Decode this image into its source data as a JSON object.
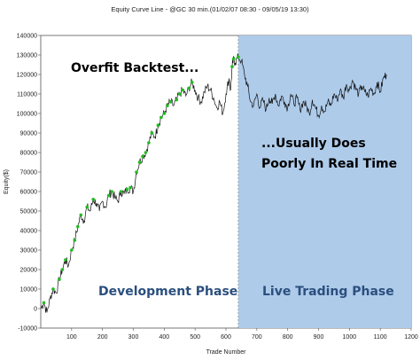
{
  "chart_data": {
    "type": "line",
    "title": "Equity Curve Line - @GC 30 min.(01/02/07 08:30 - 09/05/19 13:30)",
    "xlabel": "Trade Number",
    "ylabel": "Equity($)",
    "xlim": [
      0,
      1200
    ],
    "ylim": [
      -10000,
      140000
    ],
    "xticks": [
      100,
      200,
      300,
      400,
      500,
      600,
      700,
      800,
      900,
      1000,
      1100,
      1200
    ],
    "yticks": [
      -10000,
      0,
      10000,
      20000,
      30000,
      40000,
      50000,
      60000,
      70000,
      80000,
      90000,
      100000,
      110000,
      120000,
      130000,
      140000
    ],
    "grid": false,
    "live_trading_start_x": 640,
    "series": [
      {
        "name": "Equity",
        "color": "#111111",
        "points": [
          [
            0,
            0
          ],
          [
            10,
            3000
          ],
          [
            20,
            -2000
          ],
          [
            30,
            5000
          ],
          [
            40,
            10000
          ],
          [
            50,
            8000
          ],
          [
            60,
            15000
          ],
          [
            70,
            20000
          ],
          [
            80,
            25000
          ],
          [
            90,
            22000
          ],
          [
            100,
            30000
          ],
          [
            110,
            35000
          ],
          [
            120,
            42000
          ],
          [
            130,
            48000
          ],
          [
            140,
            45000
          ],
          [
            150,
            52000
          ],
          [
            160,
            50000
          ],
          [
            170,
            56000
          ],
          [
            180,
            54000
          ],
          [
            190,
            50000
          ],
          [
            200,
            55000
          ],
          [
            210,
            52000
          ],
          [
            220,
            58000
          ],
          [
            230,
            60000
          ],
          [
            240,
            57000
          ],
          [
            250,
            55000
          ],
          [
            260,
            60000
          ],
          [
            270,
            59000
          ],
          [
            280,
            61000
          ],
          [
            290,
            62000
          ],
          [
            300,
            60000
          ],
          [
            310,
            70000
          ],
          [
            320,
            75000
          ],
          [
            330,
            78000
          ],
          [
            340,
            80000
          ],
          [
            350,
            85000
          ],
          [
            360,
            90000
          ],
          [
            370,
            88000
          ],
          [
            380,
            94000
          ],
          [
            390,
            98000
          ],
          [
            400,
            100000
          ],
          [
            410,
            104000
          ],
          [
            420,
            106000
          ],
          [
            430,
            104000
          ],
          [
            440,
            107000
          ],
          [
            450,
            110000
          ],
          [
            460,
            112000
          ],
          [
            470,
            109000
          ],
          [
            480,
            113000
          ],
          [
            490,
            116000
          ],
          [
            500,
            112000
          ],
          [
            510,
            108000
          ],
          [
            520,
            106000
          ],
          [
            530,
            111000
          ],
          [
            540,
            114000
          ],
          [
            550,
            112000
          ],
          [
            560,
            108000
          ],
          [
            570,
            103000
          ],
          [
            580,
            106000
          ],
          [
            590,
            100000
          ],
          [
            600,
            110000
          ],
          [
            610,
            118000
          ],
          [
            615,
            112000
          ],
          [
            620,
            124000
          ],
          [
            625,
            128000
          ],
          [
            630,
            126000
          ],
          [
            640,
            129000
          ],
          [
            650,
            127000
          ],
          [
            660,
            120000
          ],
          [
            670,
            114000
          ],
          [
            680,
            106000
          ],
          [
            690,
            104000
          ],
          [
            700,
            110000
          ],
          [
            710,
            103000
          ],
          [
            720,
            107000
          ],
          [
            730,
            102000
          ],
          [
            740,
            108000
          ],
          [
            750,
            105000
          ],
          [
            760,
            110000
          ],
          [
            770,
            104000
          ],
          [
            780,
            109000
          ],
          [
            790,
            106000
          ],
          [
            800,
            103000
          ],
          [
            810,
            110000
          ],
          [
            820,
            105000
          ],
          [
            830,
            108000
          ],
          [
            840,
            102000
          ],
          [
            850,
            106000
          ],
          [
            860,
            104000
          ],
          [
            870,
            100000
          ],
          [
            880,
            107000
          ],
          [
            890,
            103000
          ],
          [
            900,
            99000
          ],
          [
            910,
            104000
          ],
          [
            920,
            101000
          ],
          [
            930,
            106000
          ],
          [
            940,
            104000
          ],
          [
            950,
            110000
          ],
          [
            960,
            107000
          ],
          [
            970,
            112000
          ],
          [
            980,
            108000
          ],
          [
            990,
            115000
          ],
          [
            1000,
            112000
          ],
          [
            1010,
            117000
          ],
          [
            1020,
            113000
          ],
          [
            1030,
            110000
          ],
          [
            1040,
            114000
          ],
          [
            1050,
            111000
          ],
          [
            1060,
            109000
          ],
          [
            1070,
            113000
          ],
          [
            1080,
            110000
          ],
          [
            1090,
            116000
          ],
          [
            1100,
            111000
          ],
          [
            1110,
            118000
          ],
          [
            1120,
            120000
          ]
        ]
      }
    ],
    "new_high_markers": {
      "color": "#22bb22",
      "x": [
        10,
        40,
        60,
        70,
        80,
        100,
        110,
        120,
        130,
        150,
        170,
        220,
        230,
        260,
        280,
        290,
        310,
        320,
        330,
        340,
        350,
        360,
        380,
        390,
        400,
        410,
        420,
        440,
        450,
        460,
        480,
        490,
        620,
        625,
        640
      ]
    }
  },
  "annotations": {
    "overfit": "Overfit Backtest...",
    "usually_line1": "...Usually Does",
    "usually_line2": "Poorly In Real Time",
    "development": "Development Phase",
    "live": "Live Trading Phase"
  }
}
